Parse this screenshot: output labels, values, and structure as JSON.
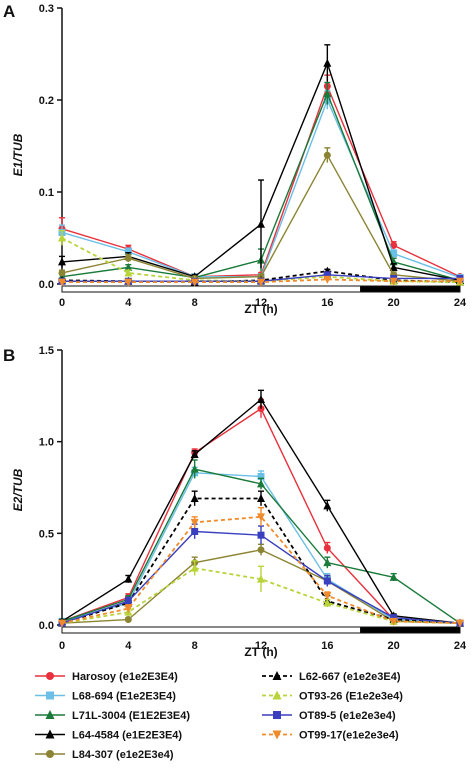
{
  "colors": {
    "Harosoy": "#e8313d",
    "L68-694": "#6bbfe6",
    "L71L-3004": "#1a7a3a",
    "L64-4584": "#000000",
    "L84-307": "#8b8433",
    "L62-667": "#000000",
    "OT93-26": "#b8d43a",
    "OT89-5": "#3a3fbf",
    "OT99-17": "#f08a2a"
  },
  "legend": [
    {
      "name": "Harosoy (e1e2E3E4)",
      "key": "Harosoy",
      "marker": "circle",
      "dash": false
    },
    {
      "name": "L68-694 (E1e2E3E4)",
      "key": "L68-694",
      "marker": "square",
      "dash": false
    },
    {
      "name": "L71L-3004 (E1E2E3E4)",
      "key": "L71L-3004",
      "marker": "triangle",
      "dash": false
    },
    {
      "name": "L64-4584 (e1E2E3E4)",
      "key": "L64-4584",
      "marker": "triangle",
      "dash": false
    },
    {
      "name": "L84-307 (e1e2E3e4)",
      "key": "L84-307",
      "marker": "circle",
      "dash": false
    },
    {
      "name": "L62-667 (e1e2e3E4)",
      "key": "L62-667",
      "marker": "triangle",
      "dash": true
    },
    {
      "name": "OT93-26 (E1e2e3e4)",
      "key": "OT93-26",
      "marker": "triangle",
      "dash": true
    },
    {
      "name": "OT89-5 (e1e2e3e4)",
      "key": "OT89-5",
      "marker": "square",
      "dash": false
    },
    {
      "name": "OT99-17(e1e2e3e4)",
      "key": "OT99-17",
      "marker": "triangle-down",
      "dash": true
    }
  ],
  "chart_data": [
    {
      "panel": "A",
      "type": "line",
      "xlabel": "ZT (h)",
      "ylabel": "E1/TUB",
      "x": [
        0,
        4,
        8,
        12,
        16,
        20,
        24
      ],
      "xlim": [
        0,
        24
      ],
      "ylim": [
        0,
        0.3
      ],
      "yticks": [
        0.0,
        0.1,
        0.2,
        0.3
      ],
      "yticklabels": [
        "0.0",
        "0.1",
        "0.2",
        "0.3"
      ],
      "dark_period": [
        18,
        24
      ],
      "series": [
        {
          "name": "Harosoy (e1e2E3E4)",
          "key": "Harosoy",
          "values": [
            0.06,
            0.038,
            0.008,
            0.01,
            0.215,
            0.042,
            0.008
          ],
          "err": [
            0.012,
            0.004,
            0.002,
            0.002,
            0.012,
            0.004,
            0.002
          ]
        },
        {
          "name": "L68-694 (E1e2E3E4)",
          "key": "L68-694",
          "values": [
            0.056,
            0.035,
            0.008,
            0.008,
            0.2,
            0.033,
            0.007
          ],
          "err": [
            0.008,
            0.004,
            0.002,
            0.002,
            0.01,
            0.004,
            0.002
          ]
        },
        {
          "name": "L71L-3004 (E1E2E3E4)",
          "key": "L71L-3004",
          "values": [
            0.008,
            0.018,
            0.007,
            0.026,
            0.207,
            0.024,
            0.004
          ],
          "err": [
            0.002,
            0.003,
            0.002,
            0.012,
            0.012,
            0.004,
            0.002
          ]
        },
        {
          "name": "L64-4584 (e1E2E3E4)",
          "key": "L64-4584",
          "values": [
            0.024,
            0.03,
            0.008,
            0.065,
            0.24,
            0.018,
            0.004
          ],
          "err": [
            0.006,
            0.004,
            0.002,
            0.048,
            0.02,
            0.004,
            0.002
          ]
        },
        {
          "name": "L84-307 (e1e2E3e4)",
          "key": "L84-307",
          "values": [
            0.012,
            0.028,
            0.006,
            0.008,
            0.14,
            0.01,
            0.003
          ],
          "err": [
            0.003,
            0.004,
            0.002,
            0.002,
            0.008,
            0.003,
            0.002
          ]
        },
        {
          "name": "L62-667 (e1e2e3E4)",
          "key": "L62-667",
          "values": [
            0.004,
            0.003,
            0.002,
            0.004,
            0.014,
            0.004,
            0.002
          ],
          "err": [
            0.001,
            0.001,
            0.001,
            0.001,
            0.002,
            0.001,
            0.001
          ]
        },
        {
          "name": "OT93-26 (E1e2e3e4)",
          "key": "OT93-26",
          "values": [
            0.05,
            0.012,
            0.004,
            0.003,
            0.008,
            0.003,
            0.002
          ],
          "err": [
            0.008,
            0.003,
            0.001,
            0.001,
            0.002,
            0.001,
            0.001
          ]
        },
        {
          "name": "OT89-5 (e1e2e3e4)",
          "key": "OT89-5",
          "values": [
            0.003,
            0.003,
            0.003,
            0.003,
            0.01,
            0.006,
            0.006
          ],
          "err": [
            0.001,
            0.001,
            0.001,
            0.001,
            0.002,
            0.002,
            0.002
          ]
        },
        {
          "name": "OT99-17(e1e2e3e4)",
          "key": "OT99-17",
          "values": [
            0.002,
            0.002,
            0.002,
            0.002,
            0.005,
            0.003,
            0.003
          ],
          "err": [
            0.001,
            0.001,
            0.001,
            0.001,
            0.001,
            0.001,
            0.001
          ]
        }
      ]
    },
    {
      "panel": "B",
      "type": "line",
      "xlabel": "ZT (h)",
      "ylabel": "E2/TUB",
      "x": [
        0,
        4,
        8,
        12,
        16,
        20,
        24
      ],
      "xlim": [
        0,
        24
      ],
      "ylim": [
        0,
        1.5
      ],
      "yticks": [
        0.0,
        0.5,
        1.0,
        1.5
      ],
      "yticklabels": [
        "0.0",
        "0.5",
        "1.0",
        "1.5"
      ],
      "dark_period": [
        18,
        24
      ],
      "series": [
        {
          "name": "Harosoy (e1e2E3E4)",
          "key": "Harosoy",
          "values": [
            0.02,
            0.15,
            0.94,
            1.18,
            0.42,
            0.03,
            0.01
          ],
          "err": [
            0.01,
            0.02,
            0.02,
            0.05,
            0.03,
            0.01,
            0.01
          ]
        },
        {
          "name": "L68-694 (E1e2E3E4)",
          "key": "L68-694",
          "values": [
            0.02,
            0.12,
            0.83,
            0.81,
            0.25,
            0.03,
            0.01
          ],
          "err": [
            0.01,
            0.02,
            0.03,
            0.03,
            0.03,
            0.01,
            0.01
          ]
        },
        {
          "name": "L71L-3004 (E1E2E3E4)",
          "key": "L71L-3004",
          "values": [
            0.02,
            0.14,
            0.85,
            0.77,
            0.34,
            0.26,
            0.01
          ],
          "err": [
            0.01,
            0.02,
            0.05,
            0.03,
            0.03,
            0.02,
            0.01
          ]
        },
        {
          "name": "L64-4584 (e1E2E3E4)",
          "key": "L64-4584",
          "values": [
            0.02,
            0.25,
            0.93,
            1.23,
            0.65,
            0.05,
            0.01
          ],
          "err": [
            0.01,
            0.02,
            0.02,
            0.05,
            0.03,
            0.01,
            0.01
          ]
        },
        {
          "name": "L84-307 (e1e2E3e4)",
          "key": "L84-307",
          "values": [
            0.01,
            0.03,
            0.34,
            0.41,
            0.24,
            0.02,
            0.01
          ],
          "err": [
            0.01,
            0.01,
            0.03,
            0.03,
            0.03,
            0.01,
            0.01
          ]
        },
        {
          "name": "L62-667 (e1e2e3E4)",
          "key": "L62-667",
          "values": [
            0.01,
            0.12,
            0.69,
            0.69,
            0.13,
            0.03,
            0.01
          ],
          "err": [
            0.01,
            0.02,
            0.04,
            0.04,
            0.03,
            0.01,
            0.01
          ]
        },
        {
          "name": "OT93-26 (E1e2e3e4)",
          "key": "OT93-26",
          "values": [
            0.01,
            0.07,
            0.31,
            0.25,
            0.12,
            0.02,
            0.01
          ],
          "err": [
            0.01,
            0.02,
            0.04,
            0.07,
            0.02,
            0.01,
            0.01
          ]
        },
        {
          "name": "OT89-5 (e1e2e3e4)",
          "key": "OT89-5",
          "values": [
            0.01,
            0.13,
            0.51,
            0.49,
            0.24,
            0.04,
            0.01
          ],
          "err": [
            0.01,
            0.02,
            0.04,
            0.05,
            0.03,
            0.01,
            0.01
          ]
        },
        {
          "name": "OT99-17(e1e2e3e4)",
          "key": "OT99-17",
          "values": [
            0.01,
            0.09,
            0.56,
            0.59,
            0.16,
            0.02,
            0.01
          ],
          "err": [
            0.01,
            0.02,
            0.03,
            0.05,
            0.02,
            0.01,
            0.01
          ]
        }
      ]
    }
  ],
  "panels": {
    "A": {
      "letter": "A"
    },
    "B": {
      "letter": "B"
    }
  }
}
